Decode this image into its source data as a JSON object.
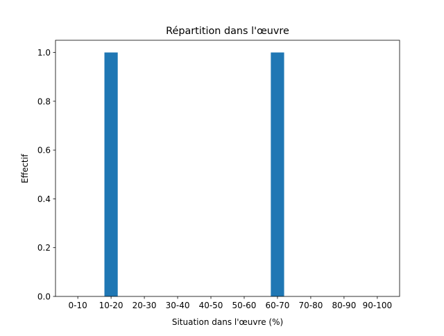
{
  "chart_data": {
    "type": "bar",
    "title": "Répartition dans l'œuvre",
    "xlabel": "Situation dans l'œuvre (%)",
    "ylabel": "Effectif",
    "categories": [
      "0-10",
      "10-20",
      "20-30",
      "30-40",
      "40-50",
      "50-60",
      "60-70",
      "70-80",
      "80-90",
      "90-100"
    ],
    "values": [
      0,
      1,
      0,
      0,
      0,
      0,
      1,
      0,
      0,
      0
    ],
    "ylim": [
      0,
      1.05
    ],
    "yticks": [
      "0.0",
      "0.2",
      "0.4",
      "0.6",
      "0.8",
      "1.0"
    ],
    "grid": false,
    "bar_color": "#1f77b4"
  }
}
